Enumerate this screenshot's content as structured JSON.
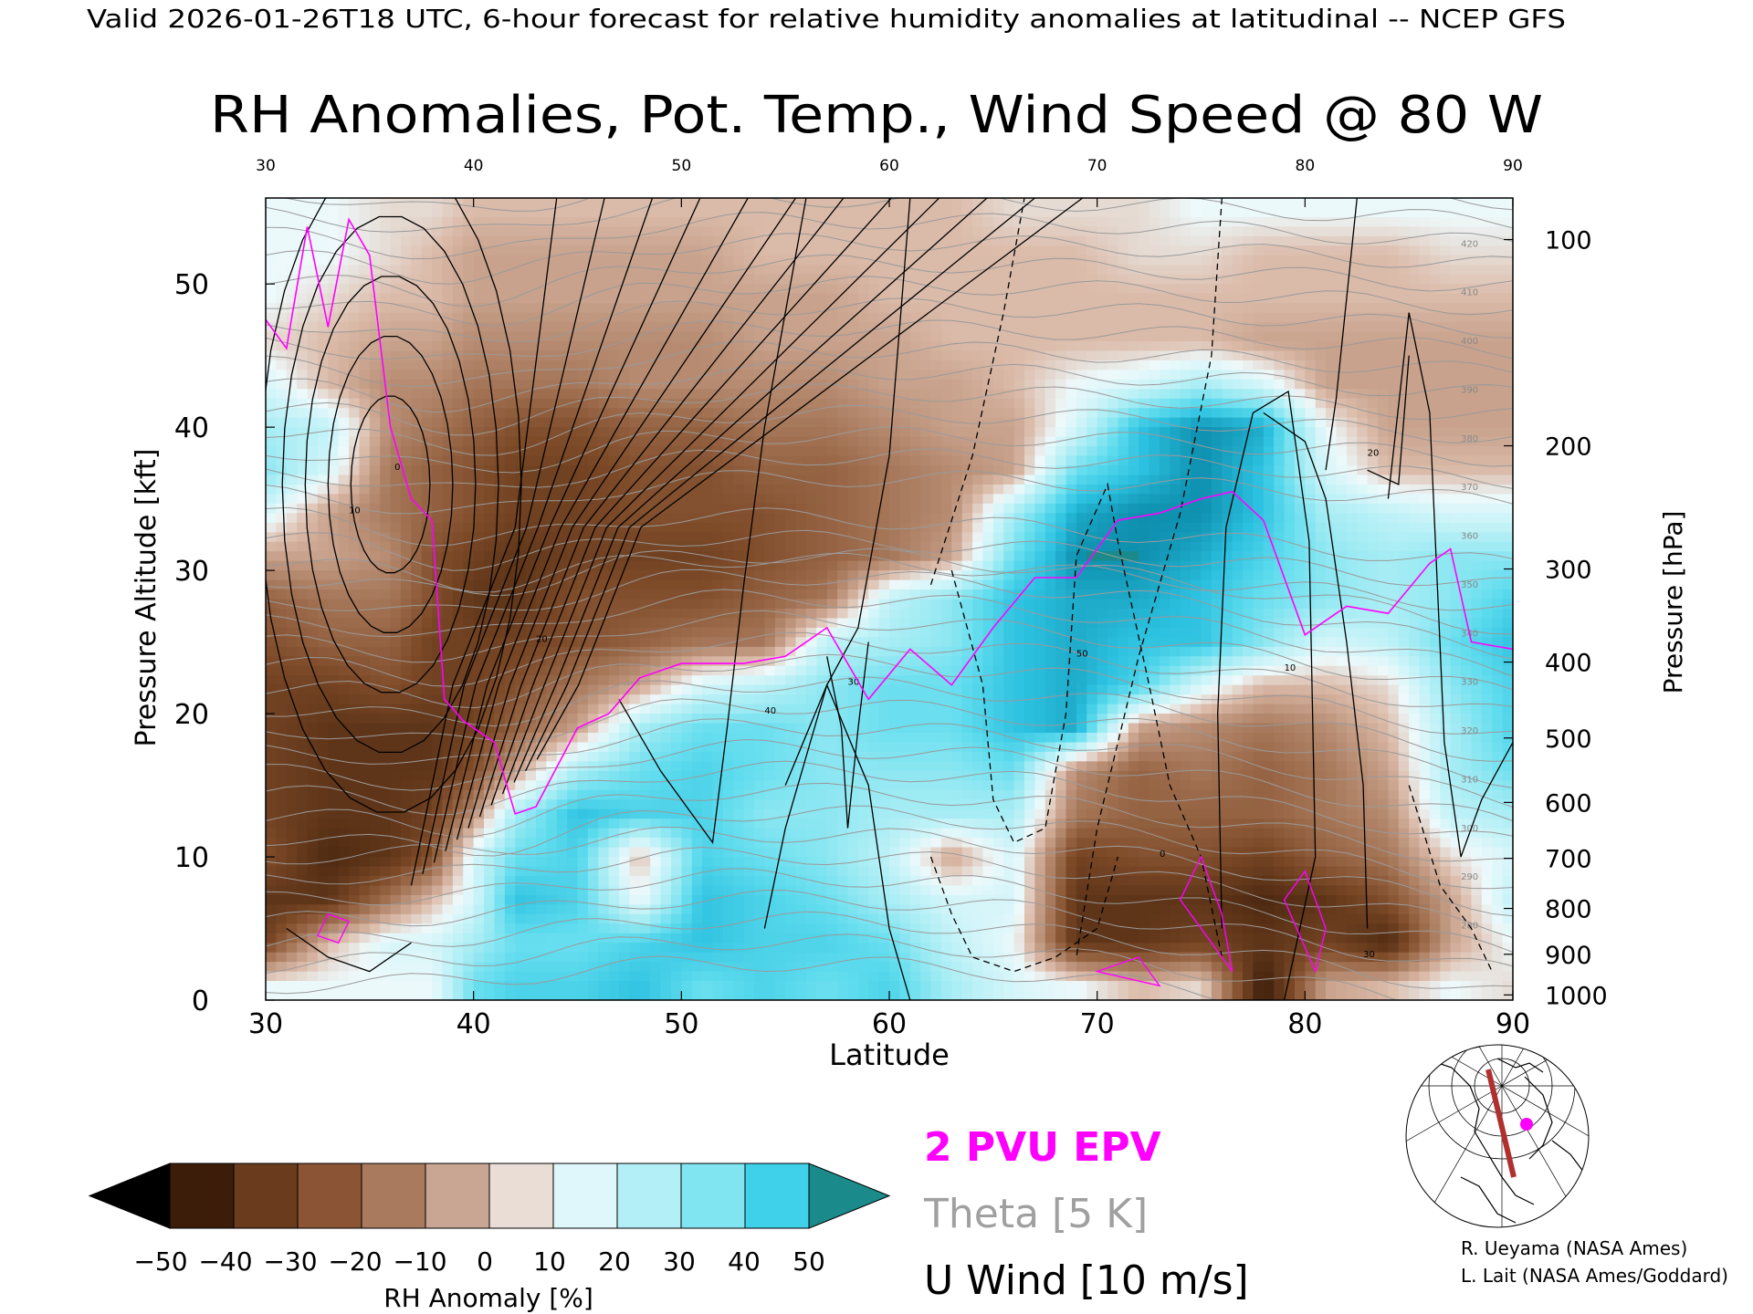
{
  "header": "Valid 2026-01-26T18 UTC, 6-hour forecast for relative humidity anomalies at latitudinal -- NCEP GFS",
  "chart_data": {
    "type": "heatmap",
    "title": "RH Anomalies, Pot. Temp., Wind Speed @ 80 W",
    "xlabel": "Latitude",
    "ylabel_left": "Pressure Altitude [kft]",
    "ylabel_right": "Pressure [hPa]",
    "xlim": [
      30,
      90
    ],
    "ylim": [
      0,
      56
    ],
    "x_ticks": [
      30,
      40,
      50,
      60,
      70,
      80,
      90
    ],
    "y_ticks_left": [
      0,
      10,
      20,
      30,
      40,
      50
    ],
    "pressure_ticks": [
      {
        "hpa": "100",
        "kft": 53.1
      },
      {
        "hpa": "200",
        "kft": 38.7
      },
      {
        "hpa": "300",
        "kft": 30.1
      },
      {
        "hpa": "400",
        "kft": 23.6
      },
      {
        "hpa": "500",
        "kft": 18.3
      },
      {
        "hpa": "600",
        "kft": 13.8
      },
      {
        "hpa": "700",
        "kft": 9.9
      },
      {
        "hpa": "800",
        "kft": 6.4
      },
      {
        "hpa": "900",
        "kft": 3.2
      },
      {
        "hpa": "1000",
        "kft": 0.36
      }
    ],
    "rh_field": {
      "lat": [
        30,
        33,
        36,
        38,
        40,
        42,
        45,
        48,
        51,
        54,
        57,
        60,
        63,
        66,
        69,
        72,
        75,
        78,
        81,
        84,
        87,
        90
      ],
      "kft": [
        1,
        4,
        7,
        10,
        13,
        16,
        19,
        22,
        25,
        28,
        31,
        34,
        37,
        40,
        43,
        46,
        49,
        52,
        55
      ],
      "values": [
        [
          5,
          5,
          5,
          5,
          30,
          35,
          35,
          40,
          30,
          35,
          30,
          35,
          20,
          10,
          5,
          -5,
          0,
          -50,
          -10,
          -5,
          5,
          0
        ],
        [
          -35,
          -5,
          10,
          10,
          20,
          30,
          30,
          35,
          40,
          35,
          35,
          30,
          15,
          5,
          -40,
          -40,
          -35,
          -40,
          -35,
          -45,
          -10,
          5
        ],
        [
          -40,
          -40,
          -20,
          -5,
          10,
          40,
          35,
          5,
          40,
          35,
          30,
          20,
          10,
          10,
          -40,
          -40,
          -40,
          -45,
          -40,
          -30,
          -10,
          15
        ],
        [
          -30,
          -45,
          -40,
          -30,
          10,
          30,
          35,
          -5,
          35,
          30,
          25,
          15,
          -10,
          10,
          -35,
          -30,
          -30,
          -35,
          -25,
          -20,
          0,
          10
        ],
        [
          -35,
          -40,
          -40,
          -35,
          -15,
          20,
          40,
          35,
          35,
          25,
          25,
          20,
          20,
          20,
          -20,
          -25,
          -25,
          -25,
          -20,
          -15,
          15,
          20
        ],
        [
          -35,
          -40,
          -40,
          -40,
          -30,
          -10,
          20,
          30,
          35,
          30,
          25,
          25,
          25,
          30,
          -15,
          -25,
          -20,
          -25,
          -20,
          -10,
          20,
          30
        ],
        [
          -35,
          -40,
          -40,
          -40,
          -35,
          -25,
          -10,
          20,
          30,
          30,
          25,
          30,
          30,
          40,
          45,
          -10,
          -15,
          -20,
          -15,
          -5,
          20,
          35
        ],
        [
          -35,
          -35,
          -30,
          -35,
          -35,
          -30,
          -20,
          -10,
          10,
          15,
          25,
          30,
          30,
          40,
          45,
          35,
          10,
          -5,
          -5,
          0,
          25,
          35
        ],
        [
          -30,
          -25,
          -25,
          -35,
          -35,
          -35,
          -30,
          -25,
          -20,
          -20,
          15,
          20,
          25,
          40,
          45,
          40,
          40,
          25,
          10,
          15,
          30,
          40
        ],
        [
          -25,
          -20,
          -20,
          -30,
          -40,
          -40,
          -30,
          -30,
          -30,
          -25,
          -20,
          15,
          25,
          40,
          45,
          45,
          40,
          30,
          25,
          20,
          25,
          35
        ],
        [
          -10,
          -10,
          -15,
          -30,
          -35,
          -40,
          -35,
          -35,
          -35,
          -30,
          -25,
          -20,
          -10,
          30,
          50,
          50,
          45,
          35,
          25,
          20,
          25,
          25
        ],
        [
          10,
          -10,
          -20,
          -25,
          -30,
          -35,
          -35,
          -30,
          -30,
          -30,
          -25,
          -20,
          -15,
          20,
          45,
          50,
          50,
          40,
          20,
          15,
          10,
          10
        ],
        [
          25,
          10,
          -20,
          -25,
          -30,
          -35,
          -35,
          -30,
          -30,
          -25,
          -25,
          -20,
          -15,
          -10,
          30,
          40,
          50,
          40,
          10,
          -5,
          -5,
          -5
        ],
        [
          20,
          15,
          -15,
          -20,
          -25,
          -30,
          -30,
          -25,
          -25,
          -20,
          -20,
          -15,
          -10,
          -10,
          10,
          40,
          50,
          45,
          5,
          -10,
          -10,
          -10
        ],
        [
          10,
          -5,
          -15,
          -15,
          -20,
          -20,
          -20,
          -15,
          -15,
          -15,
          -15,
          -10,
          -10,
          -5,
          5,
          10,
          20,
          10,
          -10,
          -10,
          -10,
          -10
        ],
        [
          0,
          -5,
          -10,
          -10,
          -15,
          -15,
          -15,
          -15,
          -15,
          -10,
          -10,
          -10,
          -5,
          -5,
          -5,
          -5,
          -5,
          -10,
          -10,
          -10,
          -10,
          -10
        ],
        [
          5,
          0,
          -5,
          -5,
          -10,
          -10,
          -10,
          -10,
          -10,
          -10,
          -10,
          -5,
          -5,
          -5,
          -5,
          -5,
          -5,
          -5,
          -5,
          -5,
          -5,
          -5
        ],
        [
          5,
          5,
          0,
          -5,
          -10,
          -10,
          -10,
          -10,
          -10,
          -5,
          -5,
          -5,
          -5,
          -5,
          -5,
          0,
          0,
          -5,
          -5,
          -5,
          0,
          0
        ],
        [
          5,
          5,
          0,
          0,
          -5,
          -5,
          -5,
          -5,
          -5,
          -5,
          -5,
          -5,
          -5,
          0,
          0,
          0,
          5,
          5,
          5,
          5,
          5,
          5
        ]
      ]
    },
    "theta_levels_shown": [
      "280",
      "290",
      "300",
      "310",
      "320",
      "330",
      "340",
      "350",
      "360",
      "370",
      "380",
      "390",
      "400",
      "410",
      "420"
    ],
    "u_wind_labels_shown": [
      "0",
      "10",
      "20",
      "30",
      "40",
      "50"
    ],
    "epv_2pvu_line": {
      "lat": [
        30.0,
        31.0,
        32.0,
        33.0,
        34.0,
        35.0,
        36.0,
        37.0,
        38.0,
        38.6,
        39.5,
        41.0,
        42.0,
        43.0,
        45.0,
        46.5,
        48.0,
        50.0,
        53.0,
        55.0,
        57.0,
        59.0,
        61.0,
        63.0,
        65.0,
        67.0,
        69.0,
        71.0,
        73.0,
        75.0,
        76.5,
        78.0,
        80.0,
        82.0,
        84.0,
        86.0,
        87.0,
        88.0,
        90.0
      ],
      "kft": [
        47.5,
        45.5,
        54.0,
        47.0,
        54.5,
        52.0,
        40.0,
        35.0,
        33.5,
        21.0,
        19.5,
        18.0,
        13.0,
        13.5,
        19.0,
        20.0,
        22.5,
        23.5,
        23.5,
        24.0,
        26.0,
        21.0,
        24.5,
        22.0,
        26.0,
        29.5,
        29.5,
        33.5,
        34.0,
        35.0,
        35.5,
        33.5,
        25.5,
        27.5,
        27.0,
        30.5,
        31.5,
        25.0,
        24.5
      ]
    }
  },
  "legend": {
    "epv": "2 PVU EPV",
    "theta": "Theta [5 K]",
    "uwind": "U Wind [10 m/s]",
    "epv_color": "#ff00ff",
    "theta_color": "#a0a0a0",
    "uwind_color": "#000000"
  },
  "colorbar": {
    "title": "RH Anomaly [%]",
    "ticks": [
      "−50",
      "−40",
      "−30",
      "−20",
      "−10",
      "0",
      "10",
      "20",
      "30",
      "40",
      "50"
    ],
    "colors": [
      "#3b1d0a",
      "#5c3317",
      "#7d4a28",
      "#9c6b4b",
      "#bb9178",
      "#dcbcab",
      "#eef9fb",
      "#c6f3f8",
      "#9beaf3",
      "#5fdcee",
      "#2cc1e0",
      "#0e8fae"
    ],
    "under_color": "#000000",
    "over_color": "#1a8a8a"
  },
  "credits": {
    "line1": "R. Ueyama (NASA Ames)",
    "line2": "L. Lait (NASA Ames/Goddard)"
  },
  "inset_map": {
    "section_color": "#b03030",
    "marker_color": "#ff00ff"
  }
}
